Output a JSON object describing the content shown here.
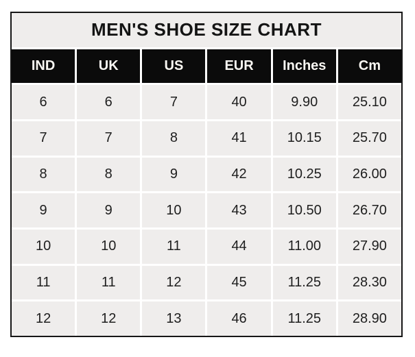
{
  "title": "MEN'S SHOE SIZE CHART",
  "table": {
    "headers": [
      "IND",
      "UK",
      "US",
      "EUR",
      "Inches",
      "Cm"
    ],
    "rows": [
      [
        "6",
        "6",
        "7",
        "40",
        "9.90",
        "25.10"
      ],
      [
        "7",
        "7",
        "8",
        "41",
        "10.15",
        "25.70"
      ],
      [
        "8",
        "8",
        "9",
        "42",
        "10.25",
        "26.00"
      ],
      [
        "9",
        "9",
        "10",
        "43",
        "10.50",
        "26.70"
      ],
      [
        "10",
        "10",
        "11",
        "44",
        "11.00",
        "27.90"
      ],
      [
        "11",
        "11",
        "12",
        "45",
        "11.25",
        "28.30"
      ],
      [
        "12",
        "12",
        "13",
        "46",
        "11.25",
        "28.90"
      ]
    ]
  },
  "chart_data": {
    "type": "table",
    "title": "MEN'S SHOE SIZE CHART",
    "columns": [
      "IND",
      "UK",
      "US",
      "EUR",
      "Inches",
      "Cm"
    ],
    "rows": [
      [
        6,
        6,
        7,
        40,
        9.9,
        25.1
      ],
      [
        7,
        7,
        8,
        41,
        10.15,
        25.7
      ],
      [
        8,
        8,
        9,
        42,
        10.25,
        26.0
      ],
      [
        9,
        9,
        10,
        43,
        10.5,
        26.7
      ],
      [
        10,
        10,
        11,
        44,
        11.0,
        27.9
      ],
      [
        11,
        11,
        12,
        45,
        11.25,
        28.3
      ],
      [
        12,
        12,
        13,
        46,
        11.25,
        28.9
      ]
    ]
  },
  "colors": {
    "page_bg": "#ffffff",
    "border": "#161616",
    "gap": "#ffffff",
    "title_bg": "#efedec",
    "title_text": "#141414",
    "header_bg": "#0b0b0b",
    "header_text": "#faf8f3",
    "cell_bg": "#efedec",
    "cell_text": "#1e1e1e"
  }
}
